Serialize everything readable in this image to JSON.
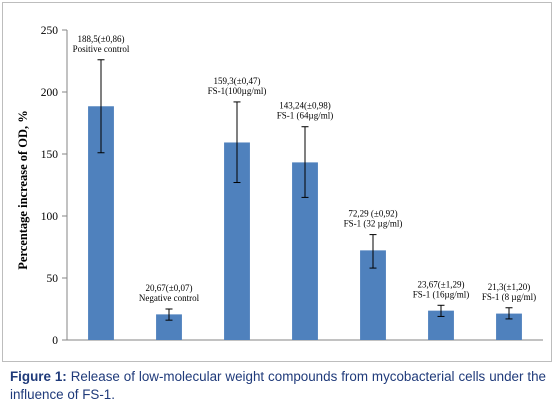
{
  "caption": {
    "label": "Figure 1:",
    "text": "Release of low-molecular weight compounds from mycobacterial cells under the influence of FS-1."
  },
  "chart_data": {
    "type": "bar",
    "ylabel": "Percentage increase of OD, %",
    "ylim": [
      0,
      250
    ],
    "yticks": [
      0,
      50,
      100,
      150,
      200,
      250
    ],
    "grid": false,
    "bar_color": "#4f81bd",
    "categories": [
      "Positive control",
      "Negative control",
      "FS-1(100µg/ml)",
      "FS-1 (64µg/ml)",
      "FS-1 (32 µg/ml)",
      "FS-1 (16µg/ml)",
      "FS-1 (8 µg/ml)"
    ],
    "value_labels": [
      "188,5(±0,86)",
      "20,67(±0,07)",
      "159,3(±0,47)",
      "143,24(±0,98)",
      "72,29 (±0,92)",
      "23,67(±1,29)",
      "21,3(±1,20)"
    ],
    "values": [
      188.5,
      20.67,
      159.3,
      143.24,
      72.29,
      23.67,
      21.3
    ],
    "error_bars": [
      [
        151,
        226
      ],
      [
        16,
        25
      ],
      [
        127,
        192
      ],
      [
        115,
        172
      ],
      [
        58,
        85
      ],
      [
        19,
        28
      ],
      [
        17,
        26
      ]
    ]
  }
}
